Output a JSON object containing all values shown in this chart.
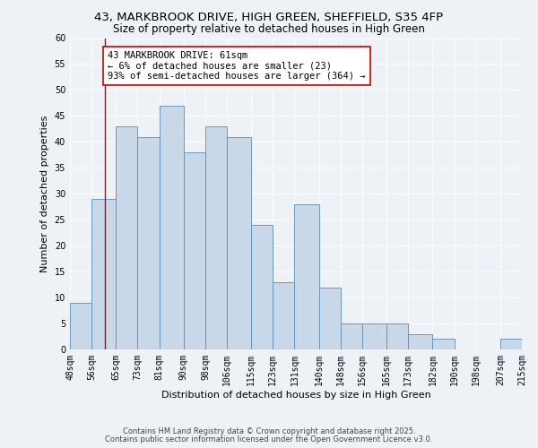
{
  "title": "43, MARKBROOK DRIVE, HIGH GREEN, SHEFFIELD, S35 4FP",
  "subtitle": "Size of property relative to detached houses in High Green",
  "xlabel": "Distribution of detached houses by size in High Green",
  "ylabel": "Number of detached properties",
  "bin_edges": [
    48,
    56,
    65,
    73,
    81,
    90,
    98,
    106,
    115,
    123,
    131,
    140,
    148,
    156,
    165,
    173,
    182,
    190,
    198,
    207,
    215
  ],
  "bar_heights": [
    9,
    29,
    43,
    41,
    47,
    38,
    43,
    41,
    24,
    13,
    28,
    12,
    5,
    5,
    5,
    3,
    2,
    0,
    0,
    2
  ],
  "bar_color": "#c8d8e8",
  "bar_edge_color": "#5b8db8",
  "tick_labels": [
    "48sqm",
    "56sqm",
    "65sqm",
    "73sqm",
    "81sqm",
    "90sqm",
    "98sqm",
    "106sqm",
    "115sqm",
    "123sqm",
    "131sqm",
    "140sqm",
    "148sqm",
    "156sqm",
    "165sqm",
    "173sqm",
    "182sqm",
    "190sqm",
    "198sqm",
    "207sqm",
    "215sqm"
  ],
  "ylim": [
    0,
    60
  ],
  "yticks": [
    0,
    5,
    10,
    15,
    20,
    25,
    30,
    35,
    40,
    45,
    50,
    55,
    60
  ],
  "vline_x": 61,
  "vline_color": "#cc0000",
  "annotation_text": "43 MARKBROOK DRIVE: 61sqm\n← 6% of detached houses are smaller (23)\n93% of semi-detached houses are larger (364) →",
  "annotation_box_color": "#ffffff",
  "annotation_box_edge": "#cc0000",
  "bg_color": "#eef2f7",
  "grid_color": "#ffffff",
  "footer_line1": "Contains HM Land Registry data © Crown copyright and database right 2025.",
  "footer_line2": "Contains public sector information licensed under the Open Government Licence v3.0.",
  "title_fontsize": 9.5,
  "subtitle_fontsize": 8.5,
  "axis_label_fontsize": 8,
  "tick_fontsize": 7,
  "annotation_fontsize": 7.5
}
